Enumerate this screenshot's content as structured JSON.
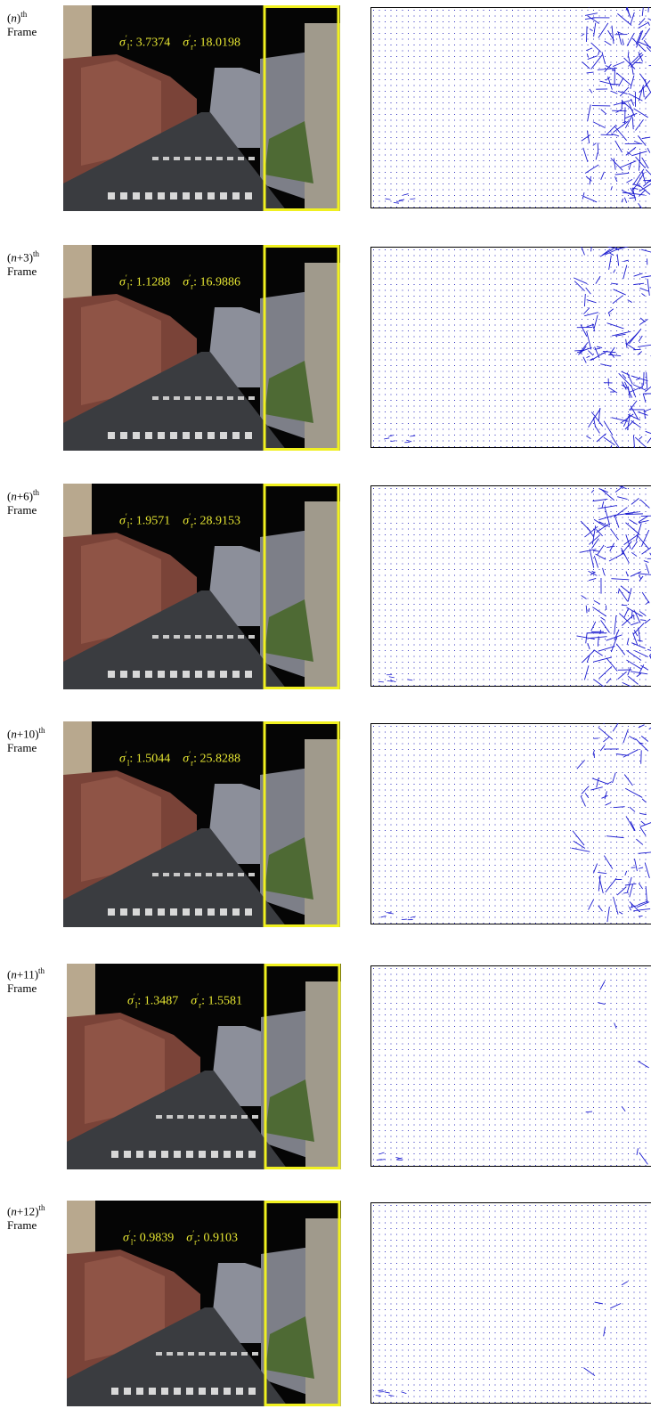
{
  "open": "(",
  "close": ")",
  "word": "Frame",
  "sup": "th",
  "symbol": "σ",
  "prime": "′",
  "sub_l": "l",
  "sub_r": "r",
  "separator": ":",
  "rows": [
    {
      "var": "n",
      "offset": "",
      "sigma_l": "3.7374",
      "sigma_r": "18.0198"
    },
    {
      "var": "n",
      "offset": "+3",
      "sigma_l": "1.1288",
      "sigma_r": "16.9886"
    },
    {
      "var": "n",
      "offset": "+6",
      "sigma_l": "1.9571",
      "sigma_r": "28.9153"
    },
    {
      "var": "n",
      "offset": "+10",
      "sigma_l": "1.5044",
      "sigma_r": "25.8288"
    },
    {
      "var": "n",
      "offset": "+11",
      "sigma_l": "1.3487",
      "sigma_r": "1.5581"
    },
    {
      "var": "n",
      "offset": "+12",
      "sigma_l": "0.9839",
      "sigma_r": "0.9103"
    }
  ]
}
